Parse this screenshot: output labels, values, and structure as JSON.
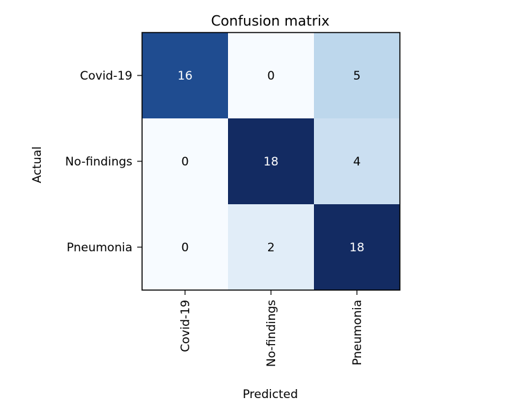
{
  "chart_data": {
    "type": "heatmap",
    "title": "Confusion matrix",
    "xlabel": "Predicted",
    "ylabel": "Actual",
    "x_categories": [
      "Covid-19",
      "No-findings",
      "Pneumonia"
    ],
    "y_categories": [
      "Covid-19",
      "No-findings",
      "Pneumonia"
    ],
    "values": [
      [
        16,
        0,
        5
      ],
      [
        0,
        18,
        4
      ],
      [
        0,
        2,
        18
      ]
    ],
    "colormap": "Blues",
    "value_range": [
      0,
      18
    ],
    "grid": false
  }
}
